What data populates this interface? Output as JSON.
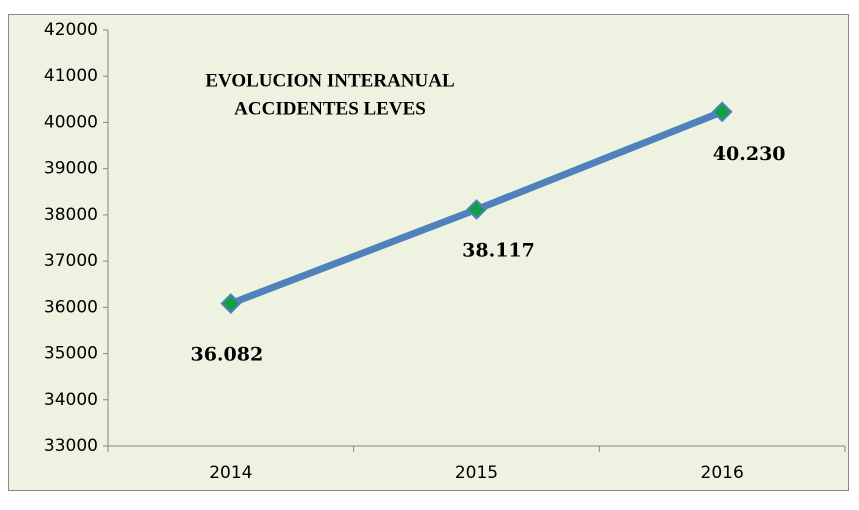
{
  "chart_data": {
    "type": "line",
    "title": [
      "EVOLUCION INTERANUAL",
      "ACCIDENTES LEVES"
    ],
    "categories": [
      "2014",
      "2015",
      "2016"
    ],
    "series": [
      {
        "name": "Accidentes leves",
        "color": "#4f81bd",
        "marker_color": "#10a040",
        "values": [
          36082,
          38117,
          40230
        ],
        "value_labels": [
          "36.082",
          "38.117",
          "40.230"
        ]
      }
    ],
    "ylim": [
      33000,
      42000
    ],
    "yticks": [
      33000,
      34000,
      35000,
      36000,
      37000,
      38000,
      39000,
      40000,
      41000,
      42000
    ],
    "grid": false,
    "legend": false
  }
}
